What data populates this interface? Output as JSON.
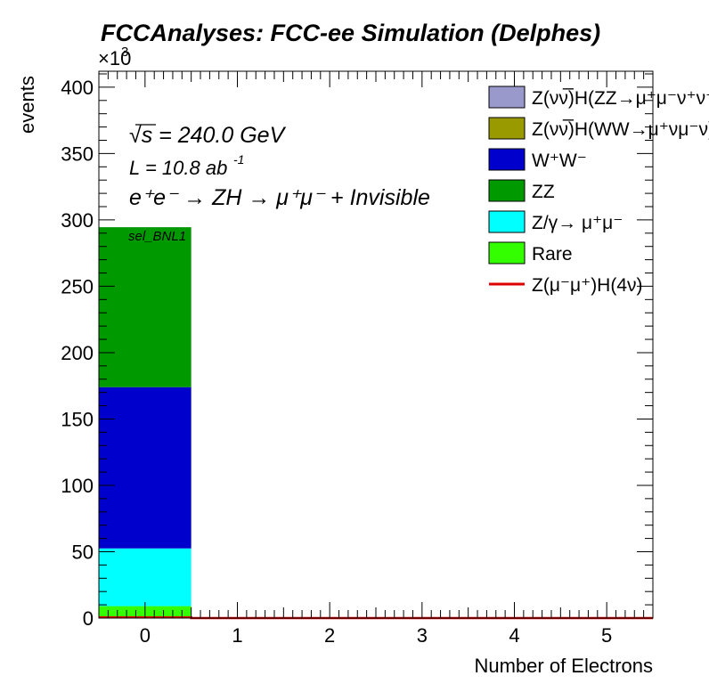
{
  "chart_data": {
    "type": "bar",
    "stacked": true,
    "title": "FCCAnalyses: FCC-ee Simulation (Delphes)",
    "xlabel": "Number of Electrons",
    "ylabel": "events",
    "y_multiplier_label": "×10",
    "y_multiplier_exponent": "3",
    "xlim": [
      -0.5,
      5.5
    ],
    "ylim": [
      0,
      412
    ],
    "x_ticks": [
      "0",
      "1",
      "2",
      "3",
      "4",
      "5"
    ],
    "y_ticks": [
      "0",
      "50",
      "100",
      "150",
      "200",
      "250",
      "300",
      "350",
      "400"
    ],
    "categories": [
      "0",
      "1",
      "2",
      "3",
      "4",
      "5"
    ],
    "grid": false,
    "legend_position": "top-right",
    "annotations": {
      "sqrt_s": "√s = 240.0 GeV",
      "lumi": "L = 10.8 ab",
      "lumi_exp": "-1",
      "process": "e⁺e⁻ → ZH → μ⁺μ⁻ + Invisible",
      "selection": "sel_BNL1"
    },
    "series": [
      {
        "name": "Z(νν̅)H(ZZ→μ⁺μ⁻ν⁺ν⁻)",
        "color": "#9999cc",
        "values": [
          0,
          0,
          0,
          0,
          0,
          0
        ]
      },
      {
        "name": "Z(νν̅)H(WW→μ⁺νμ⁻ν)",
        "color": "#999900",
        "values": [
          0,
          0,
          0,
          0,
          0,
          0
        ]
      },
      {
        "name": "Rare",
        "color": "#33ff00",
        "values": [
          9,
          0,
          0,
          0,
          0,
          0
        ]
      },
      {
        "name": "Z/γ→ μ⁺μ⁻",
        "color": "#00ffff",
        "values": [
          43.5,
          0,
          0,
          0,
          0,
          0
        ]
      },
      {
        "name": "W⁺W⁻",
        "color": "#0000cc",
        "values": [
          121.5,
          0,
          0,
          0,
          0,
          0
        ]
      },
      {
        "name": "ZZ",
        "color": "#009900",
        "values": [
          120.5,
          0,
          0,
          0,
          0,
          0
        ]
      },
      {
        "name": "Z(μ⁻μ⁺)H(4ν)",
        "color": "#dd0000",
        "type": "line",
        "values": [
          0.5,
          0,
          0,
          0,
          0,
          0
        ]
      }
    ],
    "legend_order": [
      "Z(νν̅)H(ZZ→μ⁺μ⁻ν⁺ν⁻)",
      "Z(νν̅)H(WW→μ⁺νμ⁻ν)",
      "W⁺W⁻",
      "ZZ",
      "Z/γ→ μ⁺μ⁻",
      "Rare",
      "Z(μ⁻μ⁺)H(4ν)"
    ]
  }
}
